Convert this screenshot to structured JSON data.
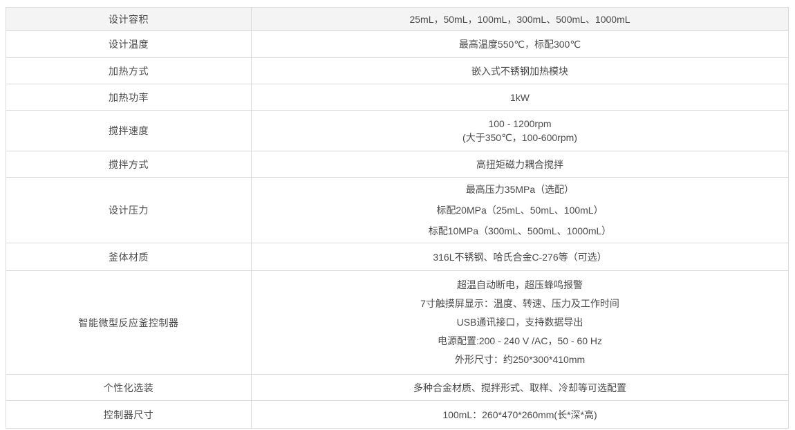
{
  "colors": {
    "header_row_background": "#f4f4f4",
    "border": "#d9d9d9",
    "text": "#4a4a4a",
    "page_background": "#ffffff"
  },
  "table": {
    "rows": [
      {
        "label": "设计容积",
        "highlighted": true,
        "values": [
          "25mL，50mL，100mL，300mL、500mL、1000mL"
        ]
      },
      {
        "label": "设计温度",
        "highlighted": false,
        "values": [
          "最高温度550℃，标配300℃"
        ]
      },
      {
        "label": "加热方式",
        "highlighted": false,
        "values": [
          "嵌入式不锈钢加热模块"
        ]
      },
      {
        "label": "加热功率",
        "highlighted": false,
        "values": [
          "1kW"
        ]
      },
      {
        "label": "搅拌速度",
        "highlighted": false,
        "values": [
          "100 - 1200rpm",
          "(大于350℃，100-600rpm)"
        ]
      },
      {
        "label": "搅拌方式",
        "highlighted": false,
        "values": [
          "高扭矩磁力耦合搅拌"
        ]
      },
      {
        "label": "设计压力",
        "highlighted": false,
        "values": [
          "最高压力35MPa（选配）",
          "标配20MPa（25mL、50mL、100mL）",
          "标配10MPa（300mL、500mL、1000mL）"
        ]
      },
      {
        "label": "釜体材质",
        "highlighted": false,
        "values": [
          "316L不锈钢、哈氏合金C-276等（可选）"
        ]
      },
      {
        "label": "智能微型反应釜控制器",
        "highlighted": false,
        "values": [
          "超温自动断电，超压蜂鸣报警",
          "7寸触摸屏显示：温度、转速、压力及工作时间",
          "USB通讯接口，支持数据导出",
          "电源配置:200 - 240 V /AC，50 - 60 Hz",
          "外形尺寸：约250*300*410mm"
        ]
      },
      {
        "label": "个性化选装",
        "highlighted": false,
        "values": [
          "多种合金材质、搅拌形式、取样、冷却等可选配置"
        ]
      },
      {
        "label": "控制器尺寸",
        "highlighted": false,
        "values": [
          "100mL：260*470*260mm(长*深*高)"
        ]
      }
    ]
  }
}
